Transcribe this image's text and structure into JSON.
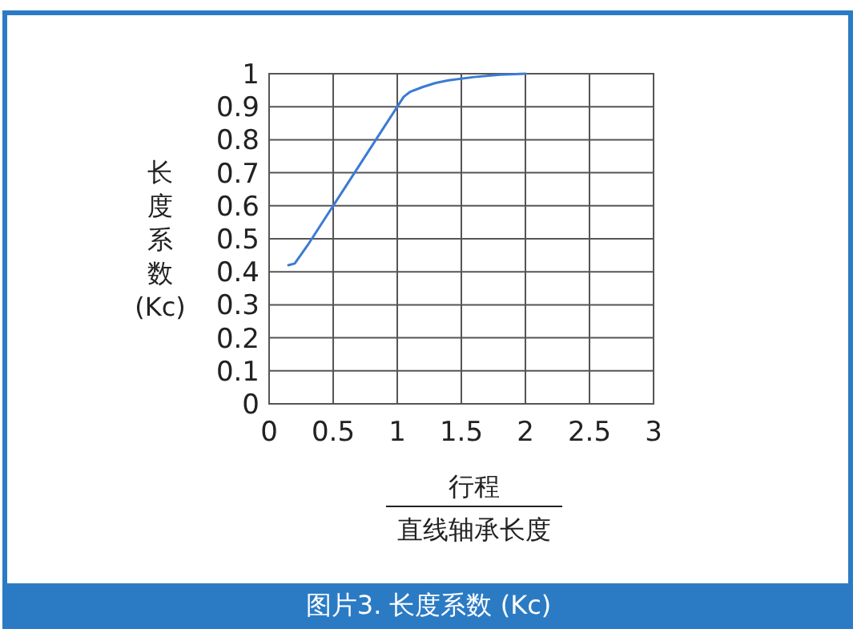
{
  "chart_data": {
    "type": "line",
    "title": "图片3. 长度系数 (Kc)",
    "xlabel": "行程",
    "annotations": [
      "直线轴承长度"
    ],
    "ylabel": "长度系数 (Kc)",
    "x": [
      0.15,
      0.2,
      0.3,
      0.4,
      0.5,
      0.6,
      0.7,
      0.8,
      0.9,
      1.0,
      1.05,
      1.1,
      1.2,
      1.3,
      1.4,
      1.6,
      1.8,
      2.0
    ],
    "series": [
      {
        "color": "#3a7bd5",
        "values": [
          0.42,
          0.425,
          0.48,
          0.54,
          0.6,
          0.66,
          0.72,
          0.78,
          0.84,
          0.9,
          0.93,
          0.945,
          0.96,
          0.972,
          0.98,
          0.99,
          0.997,
          1.0
        ]
      }
    ],
    "xlim": [
      0,
      3
    ],
    "ylim": [
      0,
      1
    ],
    "xticks": [
      0,
      0.5,
      1,
      1.5,
      2,
      2.5,
      3
    ],
    "yticks": [
      0,
      0.1,
      0.2,
      0.3,
      0.4,
      0.5,
      0.6,
      0.7,
      0.8,
      0.9,
      1
    ],
    "grid": true,
    "marker": "none",
    "line_style": "solid"
  }
}
